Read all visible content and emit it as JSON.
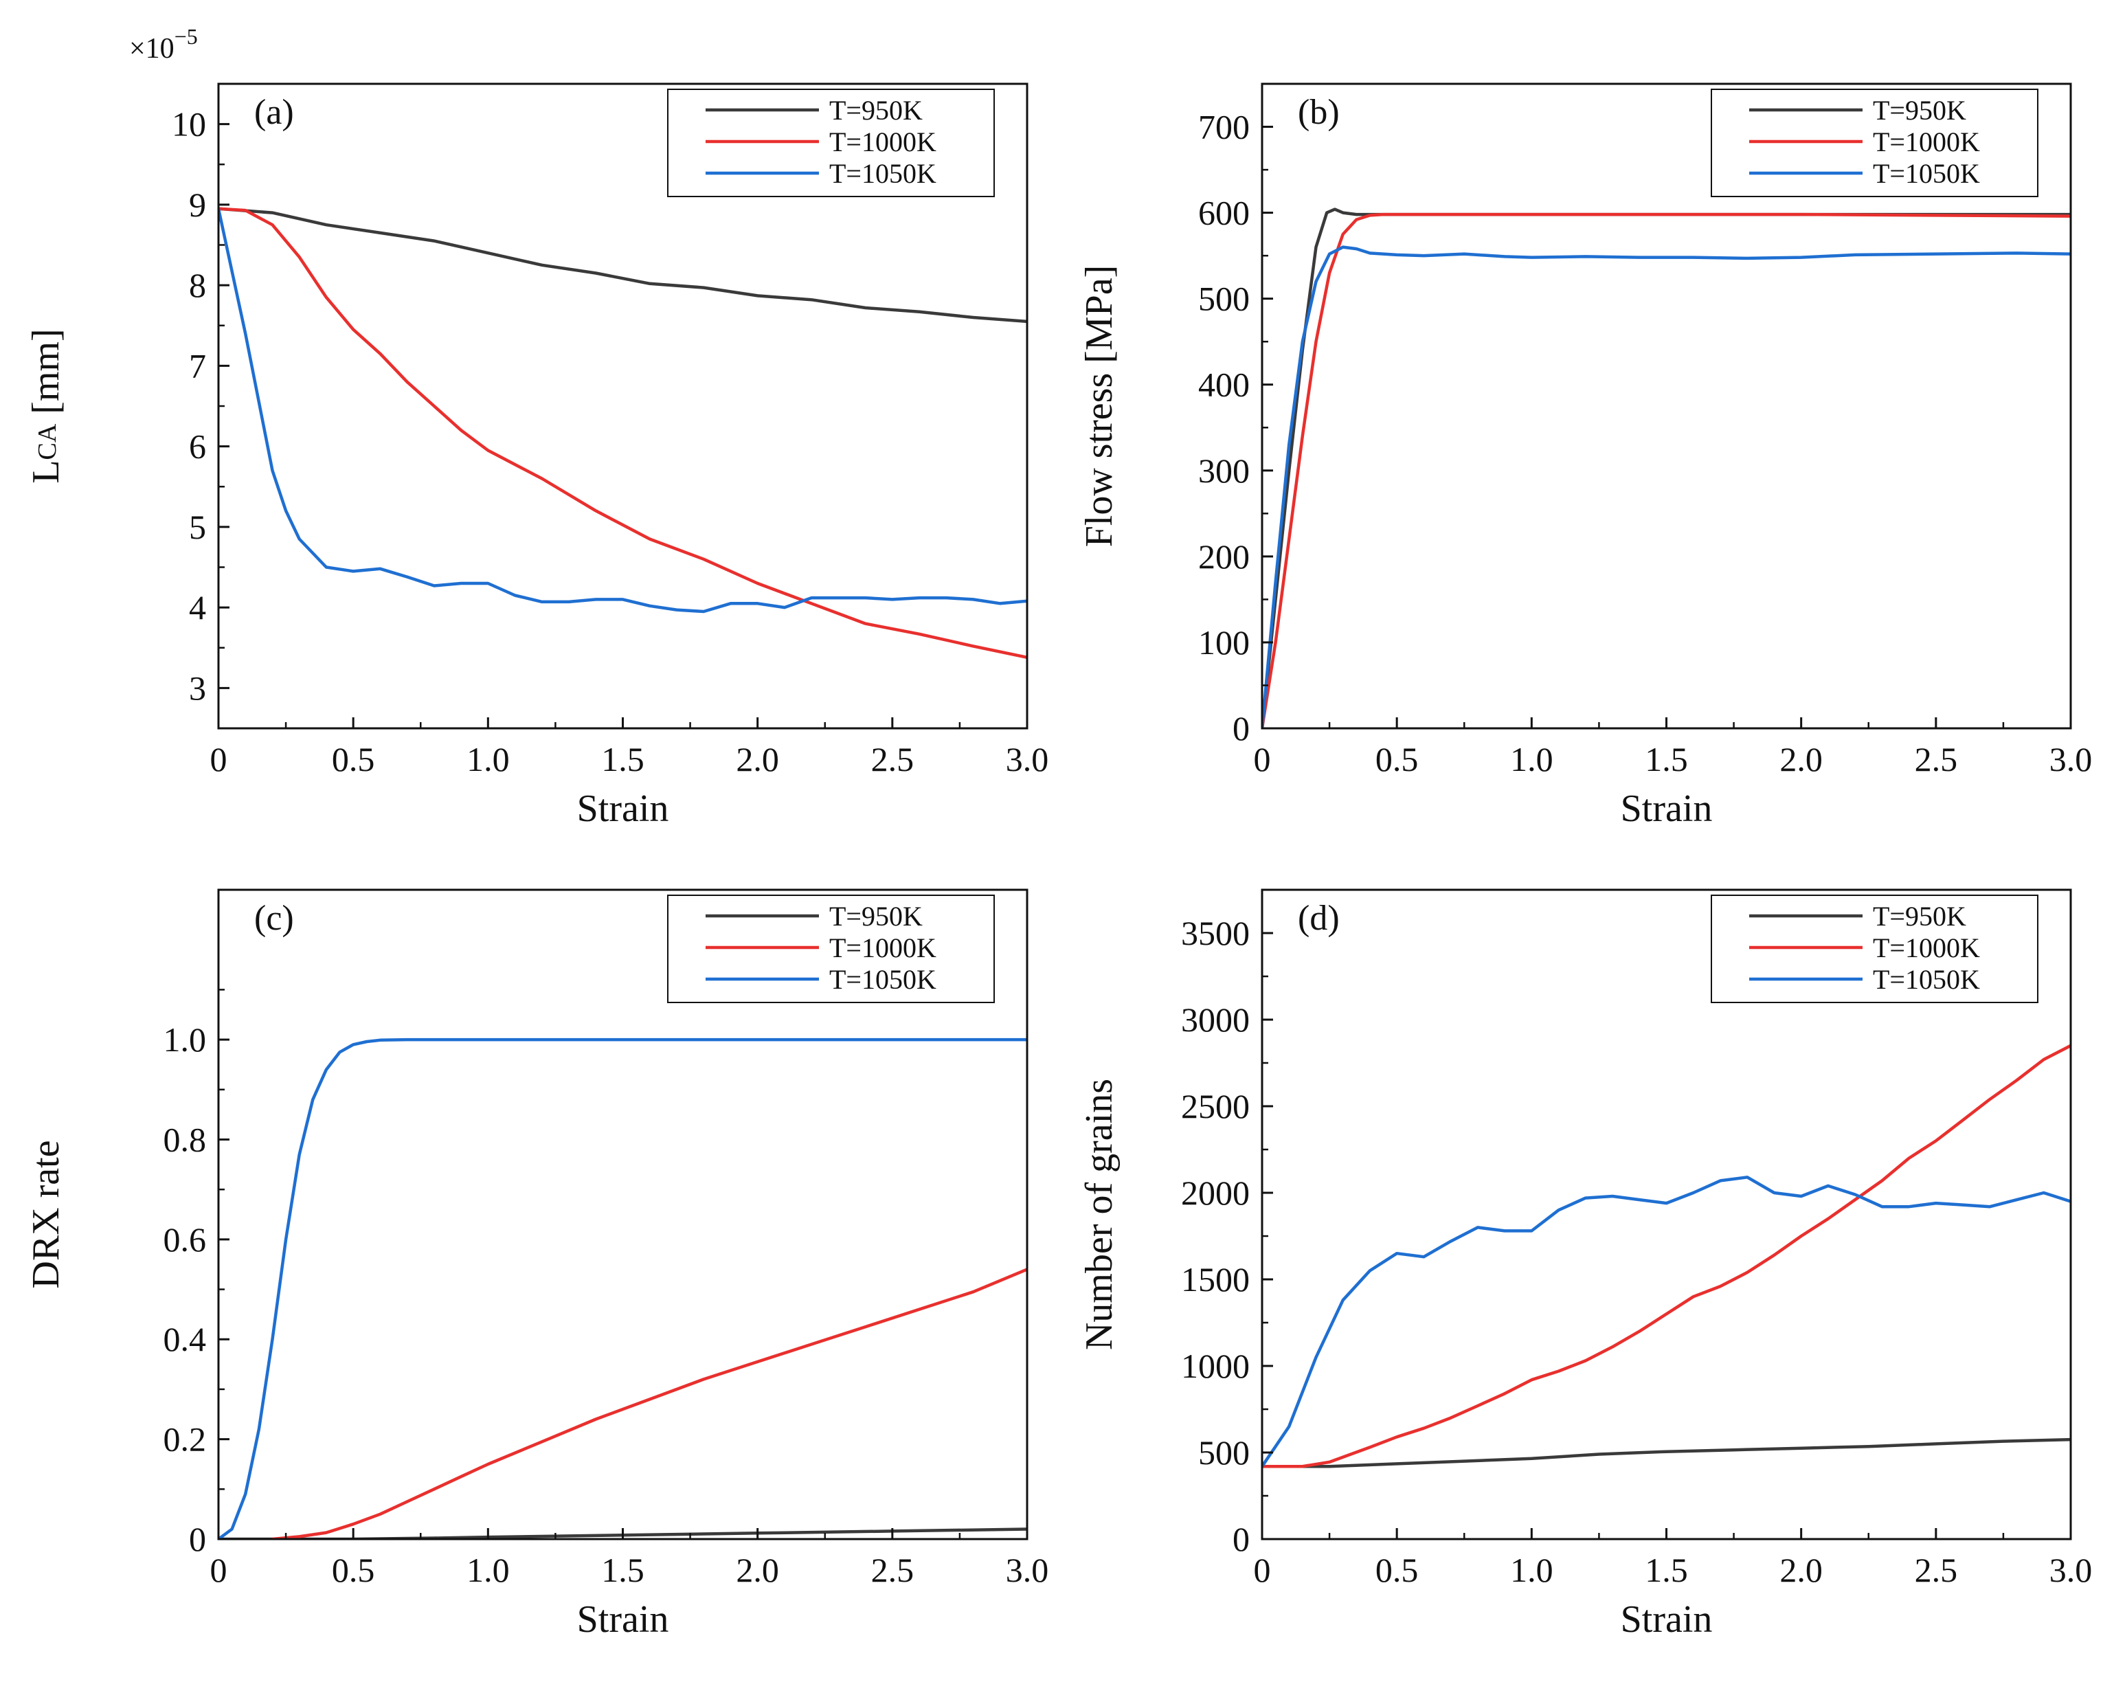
{
  "figure": {
    "colors": {
      "T950": "#3a3a3a",
      "T1000": "#e8302e",
      "T1050": "#1f6fd1",
      "axis": "#111111"
    },
    "icons": {
      "legend_line": "line-sample"
    }
  },
  "chart_data": [
    {
      "id": "a",
      "panel_label": "(a)",
      "type": "line",
      "title": "",
      "xlabel": "Strain",
      "ylabel": "LCA [mm]",
      "ylabel_main": "L",
      "ylabel_sub": "CA",
      "ylabel_unit": " [mm]",
      "exponent_label": "×10",
      "exponent_power": "−5",
      "xlim": [
        0,
        3.0
      ],
      "ylim": [
        2.5,
        10.5
      ],
      "xticks": [
        0,
        0.5,
        1.0,
        1.5,
        2.0,
        2.5,
        3.0
      ],
      "xtick_labels": [
        "0",
        "0.5",
        "1.0",
        "1.5",
        "2.0",
        "2.5",
        "3.0"
      ],
      "yticks": [
        3,
        4,
        5,
        6,
        7,
        8,
        9,
        10
      ],
      "ytick_labels": [
        "3",
        "4",
        "5",
        "6",
        "7",
        "8",
        "9",
        "10"
      ],
      "legend_position": "top-right",
      "series": [
        {
          "name": "T=950K",
          "color": "#3a3a3a",
          "x": [
            0,
            0.2,
            0.4,
            0.6,
            0.8,
            1.0,
            1.2,
            1.4,
            1.6,
            1.8,
            2.0,
            2.2,
            2.4,
            2.6,
            2.8,
            3.0
          ],
          "y": [
            8.95,
            8.9,
            8.75,
            8.65,
            8.55,
            8.4,
            8.25,
            8.15,
            8.02,
            7.97,
            7.87,
            7.82,
            7.72,
            7.67,
            7.6,
            7.55
          ]
        },
        {
          "name": "T=1000K",
          "color": "#e8302e",
          "x": [
            0,
            0.1,
            0.2,
            0.3,
            0.4,
            0.5,
            0.6,
            0.7,
            0.8,
            0.9,
            1.0,
            1.2,
            1.4,
            1.6,
            1.8,
            2.0,
            2.2,
            2.4,
            2.6,
            2.8,
            3.0
          ],
          "y": [
            8.95,
            8.93,
            8.75,
            8.35,
            7.85,
            7.45,
            7.15,
            6.8,
            6.5,
            6.2,
            5.95,
            5.6,
            5.2,
            4.85,
            4.6,
            4.3,
            4.05,
            3.8,
            3.67,
            3.52,
            3.38
          ]
        },
        {
          "name": "T=1050K",
          "color": "#1f6fd1",
          "x": [
            0,
            0.1,
            0.2,
            0.25,
            0.3,
            0.4,
            0.5,
            0.6,
            0.7,
            0.8,
            0.9,
            1.0,
            1.1,
            1.2,
            1.3,
            1.4,
            1.5,
            1.6,
            1.7,
            1.8,
            1.9,
            2.0,
            2.1,
            2.2,
            2.3,
            2.4,
            2.5,
            2.6,
            2.7,
            2.8,
            2.9,
            3.0
          ],
          "y": [
            8.95,
            7.4,
            5.7,
            5.2,
            4.85,
            4.5,
            4.45,
            4.48,
            4.38,
            4.27,
            4.3,
            4.3,
            4.15,
            4.07,
            4.07,
            4.1,
            4.1,
            4.02,
            3.97,
            3.95,
            4.05,
            4.05,
            4.0,
            4.12,
            4.12,
            4.12,
            4.1,
            4.12,
            4.12,
            4.1,
            4.05,
            4.08
          ]
        }
      ]
    },
    {
      "id": "b",
      "panel_label": "(b)",
      "type": "line",
      "title": "",
      "xlabel": "Strain",
      "ylabel": "Flow stress [MPa]",
      "xlim": [
        0,
        3.0
      ],
      "ylim": [
        0,
        750
      ],
      "xticks": [
        0,
        0.5,
        1.0,
        1.5,
        2.0,
        2.5,
        3.0
      ],
      "xtick_labels": [
        "0",
        "0.5",
        "1.0",
        "1.5",
        "2.0",
        "2.5",
        "3.0"
      ],
      "yticks": [
        0,
        100,
        200,
        300,
        400,
        500,
        600,
        700
      ],
      "ytick_labels": [
        "0",
        "100",
        "200",
        "300",
        "400",
        "500",
        "600",
        "700"
      ],
      "legend_position": "top-right",
      "series": [
        {
          "name": "T=950K",
          "color": "#3a3a3a",
          "x": [
            0,
            0.05,
            0.1,
            0.15,
            0.2,
            0.24,
            0.27,
            0.3,
            0.35,
            0.5,
            1.0,
            1.5,
            2.0,
            2.5,
            3.0
          ],
          "y": [
            0,
            150,
            300,
            440,
            560,
            600,
            604,
            600,
            598,
            598,
            598,
            598,
            598,
            598,
            598
          ]
        },
        {
          "name": "T=1000K",
          "color": "#e8302e",
          "x": [
            0,
            0.05,
            0.1,
            0.15,
            0.2,
            0.25,
            0.3,
            0.35,
            0.4,
            0.45,
            0.5,
            1.0,
            1.5,
            2.0,
            2.5,
            3.0
          ],
          "y": [
            0,
            100,
            220,
            340,
            450,
            530,
            575,
            592,
            597,
            598,
            598,
            598,
            598,
            598,
            597,
            596
          ]
        },
        {
          "name": "T=1050K",
          "color": "#1f6fd1",
          "x": [
            0,
            0.05,
            0.1,
            0.15,
            0.2,
            0.25,
            0.3,
            0.35,
            0.4,
            0.5,
            0.6,
            0.75,
            0.9,
            1.0,
            1.2,
            1.4,
            1.6,
            1.8,
            2.0,
            2.2,
            2.5,
            2.8,
            3.0
          ],
          "y": [
            0,
            170,
            330,
            450,
            520,
            552,
            560,
            558,
            553,
            551,
            550,
            552,
            549,
            548,
            549,
            548,
            548,
            547,
            548,
            551,
            552,
            553,
            552
          ]
        }
      ]
    },
    {
      "id": "c",
      "panel_label": "(c)",
      "type": "line",
      "title": "",
      "xlabel": "Strain",
      "ylabel": "DRX rate",
      "xlim": [
        0,
        3.0
      ],
      "ylim": [
        0,
        1.3
      ],
      "xticks": [
        0,
        0.5,
        1.0,
        1.5,
        2.0,
        2.5,
        3.0
      ],
      "xtick_labels": [
        "0",
        "0.5",
        "1.0",
        "1.5",
        "2.0",
        "2.5",
        "3.0"
      ],
      "yticks": [
        0,
        0.2,
        0.4,
        0.6,
        0.8,
        1.0
      ],
      "ytick_labels": [
        "0",
        "0.2",
        "0.4",
        "0.6",
        "0.8",
        "1.0"
      ],
      "legend_position": "top-right",
      "series": [
        {
          "name": "T=950K",
          "color": "#3a3a3a",
          "x": [
            0,
            0.5,
            0.8,
            1.0,
            1.5,
            2.0,
            2.5,
            3.0
          ],
          "y": [
            0,
            0.0,
            0.002,
            0.004,
            0.008,
            0.012,
            0.016,
            0.02
          ]
        },
        {
          "name": "T=1000K",
          "color": "#e8302e",
          "x": [
            0.2,
            0.3,
            0.4,
            0.5,
            0.6,
            0.7,
            0.8,
            0.9,
            1.0,
            1.2,
            1.4,
            1.6,
            1.8,
            2.0,
            2.2,
            2.4,
            2.6,
            2.8,
            3.0
          ],
          "y": [
            0,
            0.005,
            0.013,
            0.03,
            0.05,
            0.075,
            0.1,
            0.125,
            0.15,
            0.195,
            0.24,
            0.28,
            0.32,
            0.355,
            0.39,
            0.425,
            0.46,
            0.495,
            0.54
          ]
        },
        {
          "name": "T=1050K",
          "color": "#1f6fd1",
          "x": [
            0,
            0.05,
            0.1,
            0.15,
            0.2,
            0.25,
            0.3,
            0.35,
            0.4,
            0.45,
            0.5,
            0.55,
            0.6,
            0.7,
            0.8,
            1.0,
            1.5,
            2.0,
            2.5,
            3.0
          ],
          "y": [
            0,
            0.02,
            0.09,
            0.22,
            0.4,
            0.6,
            0.77,
            0.88,
            0.94,
            0.975,
            0.99,
            0.996,
            0.999,
            1.0,
            1.0,
            1.0,
            1.0,
            1.0,
            1.0,
            1.0
          ]
        }
      ]
    },
    {
      "id": "d",
      "panel_label": "(d)",
      "type": "line",
      "title": "",
      "xlabel": "Strain",
      "ylabel": "Number of grains",
      "xlim": [
        0,
        3.0
      ],
      "ylim": [
        0,
        3750
      ],
      "xticks": [
        0,
        0.5,
        1.0,
        1.5,
        2.0,
        2.5,
        3.0
      ],
      "xtick_labels": [
        "0",
        "0.5",
        "1.0",
        "1.5",
        "2.0",
        "2.5",
        "3.0"
      ],
      "yticks": [
        0,
        500,
        1000,
        1500,
        2000,
        2500,
        3000,
        3500
      ],
      "ytick_labels": [
        "0",
        "500",
        "1000",
        "1500",
        "2000",
        "2500",
        "3000",
        "3500"
      ],
      "legend_position": "top-right",
      "series": [
        {
          "name": "T=950K",
          "color": "#3a3a3a",
          "x": [
            0,
            0.25,
            0.5,
            0.75,
            1.0,
            1.25,
            1.5,
            1.75,
            2.0,
            2.25,
            2.5,
            2.75,
            3.0
          ],
          "y": [
            420,
            420,
            435,
            450,
            465,
            490,
            505,
            515,
            525,
            535,
            550,
            565,
            575
          ]
        },
        {
          "name": "T=1000K",
          "color": "#e8302e",
          "x": [
            0,
            0.15,
            0.25,
            0.4,
            0.5,
            0.6,
            0.7,
            0.8,
            0.9,
            1.0,
            1.1,
            1.2,
            1.3,
            1.4,
            1.5,
            1.6,
            1.7,
            1.8,
            1.9,
            2.0,
            2.1,
            2.2,
            2.3,
            2.4,
            2.5,
            2.6,
            2.7,
            2.8,
            2.9,
            3.0
          ],
          "y": [
            420,
            420,
            445,
            530,
            590,
            640,
            700,
            770,
            840,
            920,
            970,
            1030,
            1110,
            1200,
            1300,
            1400,
            1460,
            1540,
            1640,
            1750,
            1850,
            1960,
            2070,
            2200,
            2300,
            2420,
            2540,
            2650,
            2770,
            2850
          ]
        },
        {
          "name": "T=1050K",
          "color": "#1f6fd1",
          "x": [
            0,
            0.1,
            0.2,
            0.3,
            0.4,
            0.5,
            0.6,
            0.7,
            0.8,
            0.9,
            1.0,
            1.1,
            1.2,
            1.3,
            1.4,
            1.5,
            1.6,
            1.7,
            1.8,
            1.9,
            2.0,
            2.1,
            2.2,
            2.3,
            2.4,
            2.5,
            2.6,
            2.7,
            2.8,
            2.9,
            3.0
          ],
          "y": [
            420,
            650,
            1050,
            1380,
            1550,
            1650,
            1630,
            1720,
            1800,
            1780,
            1780,
            1900,
            1970,
            1980,
            1960,
            1940,
            2000,
            2070,
            2090,
            2000,
            1980,
            2040,
            1990,
            1920,
            1920,
            1940,
            1930,
            1920,
            1960,
            2000,
            1950
          ]
        }
      ]
    }
  ]
}
